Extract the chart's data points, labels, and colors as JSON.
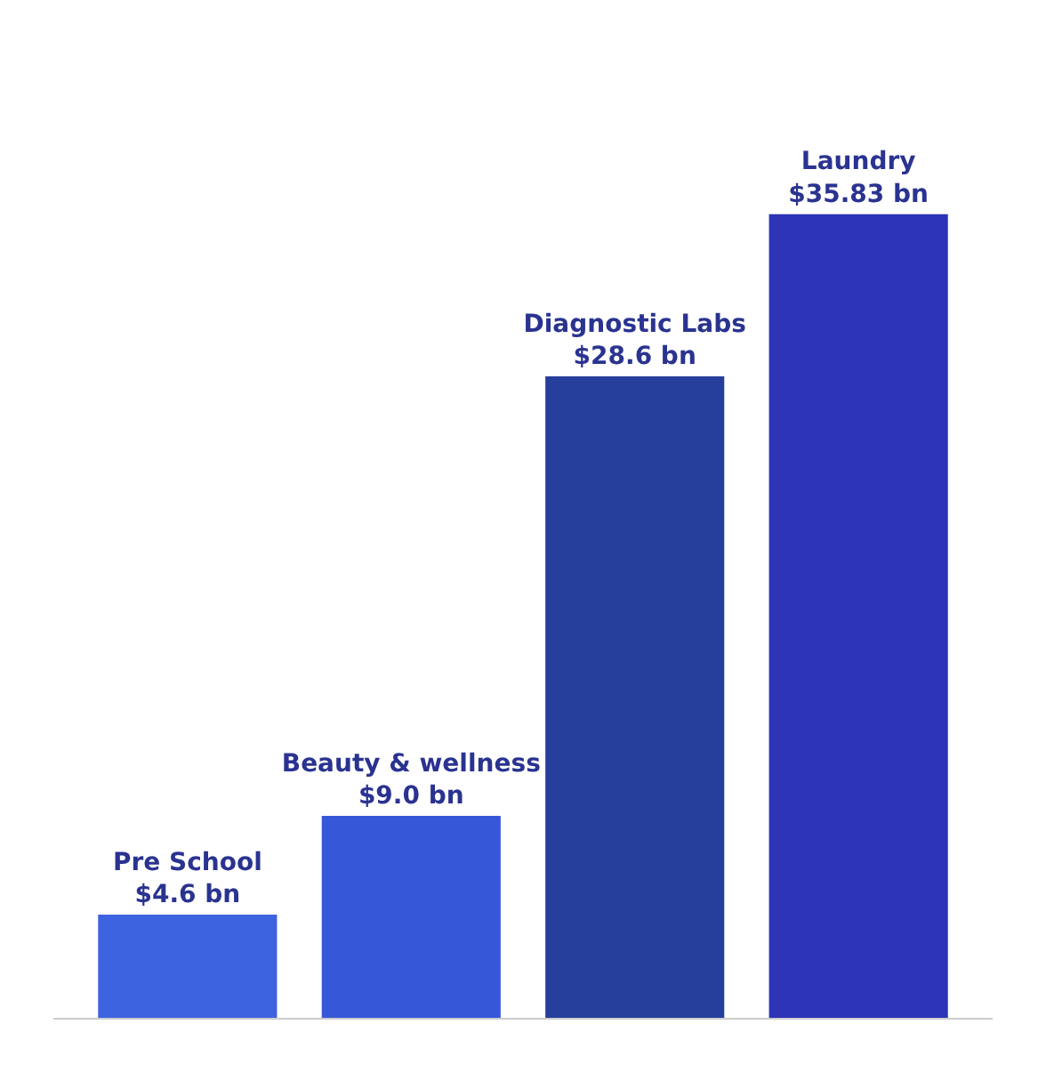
{
  "chart_data": {
    "type": "bar",
    "categories": [
      "Pre School",
      "Beauty & wellness",
      "Diagnostic Labs",
      "Laundry"
    ],
    "values": [
      4.6,
      9.0,
      28.6,
      35.83
    ],
    "value_labels": [
      "$4.6 bn",
      "$9.0 bn",
      "$28.6 bn",
      "$35.83 bn"
    ],
    "colors": [
      "#3d63e0",
      "#3658d8",
      "#273f9c",
      "#2d34b8"
    ],
    "tick_labels": false
  }
}
